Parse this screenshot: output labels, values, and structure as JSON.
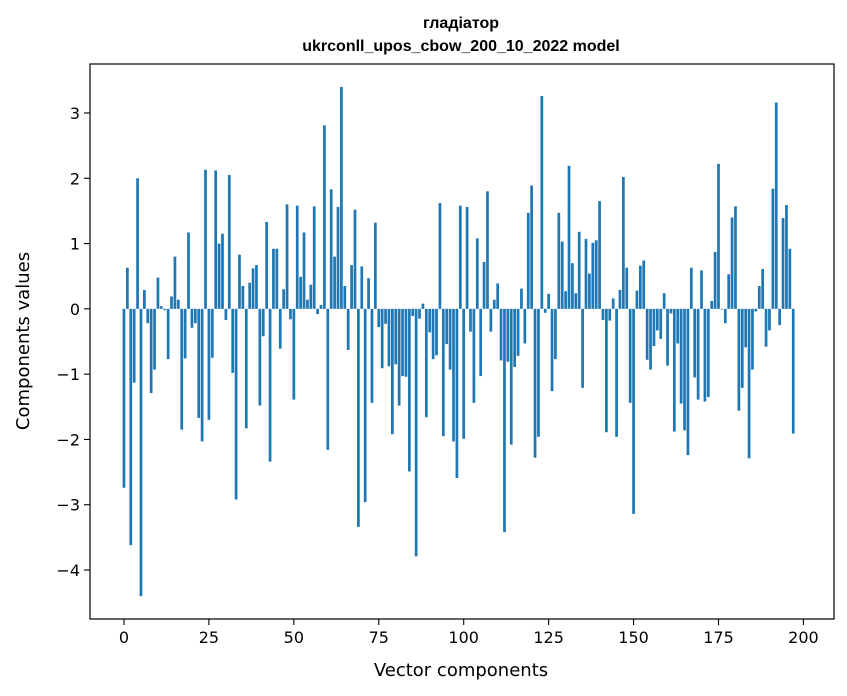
{
  "chart_data": {
    "type": "bar",
    "title": [
      "гладіатор",
      "ukrconll_upos_cbow_200_10_2022 model"
    ],
    "xlabel": "Vector components",
    "ylabel": "Components values",
    "xlim": [
      -10,
      209
    ],
    "ylim": [
      -4.75,
      3.75
    ],
    "xticks": [
      0,
      25,
      50,
      75,
      100,
      125,
      150,
      175,
      200
    ],
    "yticks": [
      -4,
      -3,
      -2,
      -1,
      0,
      1,
      2,
      3
    ],
    "bar_color": "#1f77b4",
    "values": [
      -2.74,
      0.63,
      -3.62,
      -1.13,
      2.0,
      -4.4,
      0.29,
      -0.22,
      -1.29,
      -0.93,
      0.48,
      0.04,
      -0.02,
      -0.77,
      0.19,
      0.8,
      0.14,
      -1.85,
      -0.76,
      1.17,
      -0.29,
      -0.22,
      -1.67,
      -2.03,
      2.13,
      -1.7,
      -0.75,
      2.12,
      1.0,
      1.15,
      -0.17,
      2.05,
      -0.98,
      -2.92,
      0.83,
      0.35,
      -1.83,
      0.4,
      0.62,
      0.67,
      -1.48,
      -0.42,
      1.33,
      -2.34,
      0.92,
      0.92,
      -0.61,
      0.3,
      1.6,
      -0.16,
      -1.39,
      1.58,
      0.49,
      1.17,
      0.14,
      0.37,
      1.57,
      -0.08,
      0.06,
      2.81,
      -2.16,
      1.83,
      0.8,
      1.56,
      3.4,
      0.35,
      -0.63,
      0.67,
      1.52,
      -3.34,
      0.65,
      -2.96,
      0.47,
      -1.44,
      1.32,
      -0.28,
      -0.91,
      -0.23,
      -0.88,
      -1.92,
      -0.85,
      -1.48,
      -1.03,
      -1.04,
      -2.49,
      -0.11,
      -3.79,
      -0.15,
      0.08,
      -1.66,
      -0.36,
      -0.77,
      -0.71,
      1.62,
      -1.95,
      -0.54,
      -0.93,
      -2.03,
      -2.59,
      1.58,
      -1.99,
      1.56,
      -0.35,
      -1.44,
      1.08,
      -1.03,
      0.72,
      1.8,
      -0.35,
      0.14,
      0.39,
      -0.79,
      -3.42,
      -0.81,
      -2.08,
      -0.89,
      -0.72,
      0.31,
      -0.53,
      1.47,
      1.89,
      -2.28,
      -1.96,
      3.26,
      -0.06,
      0.23,
      -1.26,
      -0.77,
      1.47,
      1.03,
      0.27,
      2.19,
      0.7,
      0.24,
      1.18,
      -1.21,
      1.07,
      0.54,
      1.01,
      1.05,
      1.65,
      -0.17,
      -1.89,
      -0.18,
      0.16,
      -1.96,
      0.29,
      2.02,
      0.63,
      -1.44,
      -3.14,
      0.28,
      0.66,
      0.74,
      -0.78,
      -0.93,
      -0.57,
      -0.33,
      -0.46,
      0.24,
      -0.87,
      -0.07,
      -1.88,
      -0.53,
      -1.45,
      -1.86,
      -2.24,
      0.63,
      -1.05,
      -1.39,
      0.59,
      -1.42,
      -1.35,
      0.12,
      0.87,
      2.22,
      -0.01,
      -0.22,
      0.53,
      1.4,
      1.57,
      -1.56,
      -1.21,
      -0.59,
      -2.29,
      -0.93,
      -0.04,
      0.35,
      0.61,
      -0.58,
      -0.33,
      1.84,
      3.16,
      -0.25,
      1.39,
      1.59,
      0.92,
      -1.91
    ]
  }
}
